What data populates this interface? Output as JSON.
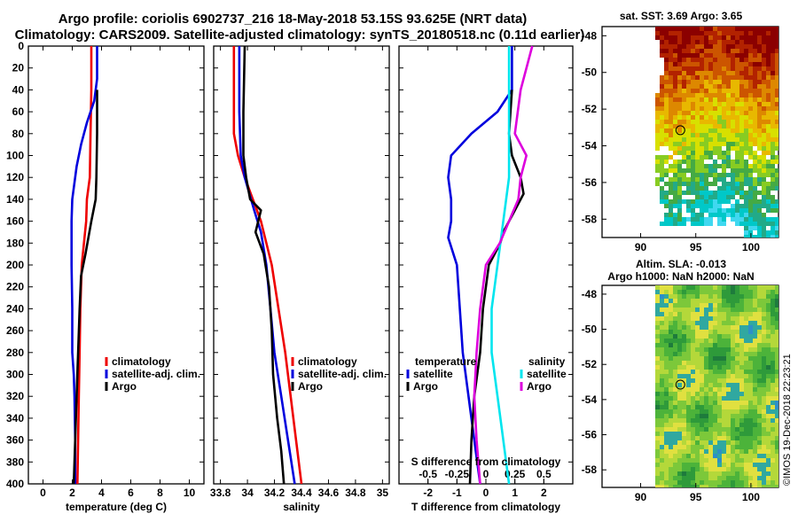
{
  "title_line1": "Argo profile: coriolis 6902737_216 18-May-2018 53.15S 93.625E (NRT data)",
  "title_line2": "Climatology: CARS2009. Satellite-adjusted climatology: synTS_20180518.nc (0.11d earlier)",
  "timestamp": "©IMOS 19-Dec-2018 22:23:21",
  "colors": {
    "climatology": "#ee0000",
    "satellite": "#0000dd",
    "argo": "#000000",
    "sat_salinity": "#00e5ee",
    "argo_salinity": "#dd00dd"
  },
  "chart_data": [
    {
      "type": "line",
      "name": "temperature-profile",
      "xlabel": "temperature (deg C)",
      "ylabel": "",
      "xlim": [
        -1,
        11
      ],
      "ylim": [
        400,
        0
      ],
      "xticks": [
        0,
        2,
        4,
        6,
        8,
        10
      ],
      "xtick_labels": [
        "0",
        "2",
        "4",
        "6",
        "8",
        "10"
      ],
      "yticks": [
        0,
        20,
        40,
        60,
        80,
        100,
        120,
        140,
        160,
        180,
        200,
        220,
        240,
        260,
        280,
        300,
        320,
        340,
        360,
        380,
        400
      ],
      "legend": [
        "climatology",
        "satellite-adj. clim.",
        "Argo"
      ],
      "legend_position": "lower-right",
      "series": [
        {
          "name": "climatology",
          "color": "#ee0000",
          "points": [
            [
              3.3,
              0
            ],
            [
              3.3,
              40
            ],
            [
              3.25,
              80
            ],
            [
              3.2,
              120
            ],
            [
              3.0,
              140
            ],
            [
              2.95,
              160
            ],
            [
              2.8,
              180
            ],
            [
              2.65,
              200
            ],
            [
              2.55,
              240
            ],
            [
              2.5,
              280
            ],
            [
              2.45,
              320
            ],
            [
              2.4,
              360
            ],
            [
              2.35,
              400
            ]
          ]
        },
        {
          "name": "satellite-adj. clim.",
          "color": "#0000dd",
          "points": [
            [
              3.7,
              0
            ],
            [
              3.7,
              30
            ],
            [
              3.5,
              50
            ],
            [
              3.0,
              70
            ],
            [
              2.6,
              90
            ],
            [
              2.3,
              110
            ],
            [
              2.0,
              140
            ],
            [
              1.95,
              160
            ],
            [
              1.95,
              200
            ],
            [
              2.0,
              240
            ],
            [
              2.0,
              280
            ],
            [
              2.1,
              300
            ],
            [
              2.15,
              320
            ],
            [
              2.2,
              360
            ],
            [
              2.2,
              400
            ]
          ]
        },
        {
          "name": "Argo",
          "color": "#000000",
          "points": [
            [
              3.7,
              40
            ],
            [
              3.7,
              80
            ],
            [
              3.65,
              120
            ],
            [
              3.6,
              140
            ],
            [
              3.3,
              160
            ],
            [
              2.9,
              190
            ],
            [
              2.6,
              210
            ],
            [
              2.5,
              240
            ],
            [
              2.4,
              280
            ],
            [
              2.3,
              320
            ],
            [
              2.2,
              360
            ],
            [
              2.1,
              400
            ]
          ]
        }
      ]
    },
    {
      "type": "line",
      "name": "salinity-profile",
      "xlabel": "salinity",
      "ylabel": "",
      "xlim": [
        33.75,
        35.05
      ],
      "ylim": [
        400,
        0
      ],
      "xticks": [
        33.8,
        34,
        34.2,
        34.4,
        34.6,
        34.8,
        35
      ],
      "xtick_labels": [
        "33.8",
        "34",
        "34.2",
        "34.4",
        "34.6",
        "34.8",
        "35"
      ],
      "legend": [
        "climatology",
        "satellite-adj. clim.",
        "Argo"
      ],
      "legend_position": "lower-right",
      "series": [
        {
          "name": "climatology",
          "color": "#ee0000",
          "points": [
            [
              33.9,
              0
            ],
            [
              33.9,
              40
            ],
            [
              33.9,
              80
            ],
            [
              33.93,
              100
            ],
            [
              33.98,
              120
            ],
            [
              34.04,
              140
            ],
            [
              34.1,
              160
            ],
            [
              34.14,
              180
            ],
            [
              34.18,
              200
            ],
            [
              34.23,
              240
            ],
            [
              34.28,
              280
            ],
            [
              34.32,
              320
            ],
            [
              34.36,
              360
            ],
            [
              34.4,
              400
            ]
          ]
        },
        {
          "name": "satellite-adj. clim.",
          "color": "#0000dd",
          "points": [
            [
              33.94,
              0
            ],
            [
              33.94,
              60
            ],
            [
              33.95,
              100
            ],
            [
              33.98,
              120
            ],
            [
              34.05,
              150
            ],
            [
              34.1,
              170
            ],
            [
              34.14,
              200
            ],
            [
              34.17,
              240
            ],
            [
              34.2,
              280
            ],
            [
              34.25,
              320
            ],
            [
              34.3,
              360
            ],
            [
              34.35,
              400
            ]
          ]
        },
        {
          "name": "Argo",
          "color": "#000000",
          "points": [
            [
              33.98,
              0
            ],
            [
              33.97,
              60
            ],
            [
              33.97,
              100
            ],
            [
              33.99,
              120
            ],
            [
              34.02,
              140
            ],
            [
              34.1,
              150
            ],
            [
              34.06,
              170
            ],
            [
              34.12,
              190
            ],
            [
              34.16,
              220
            ],
            [
              34.18,
              260
            ],
            [
              34.19,
              300
            ],
            [
              34.22,
              340
            ],
            [
              34.25,
              370
            ],
            [
              34.27,
              400
            ]
          ]
        }
      ]
    },
    {
      "type": "line",
      "name": "difference-profile",
      "xlabel": "T difference from climatology",
      "xlabel_top": "S difference from climatology",
      "xlim": [
        -3,
        3
      ],
      "ylim": [
        400,
        0
      ],
      "xticks": [
        -2,
        -1,
        0,
        1,
        2
      ],
      "xtick_labels": [
        "-2",
        "-1",
        "0",
        "1",
        "2"
      ],
      "s_xticks": [
        -0.5,
        -0.25,
        0,
        0.25,
        0.5
      ],
      "s_xtick_labels": [
        "-0.5",
        "-0.25",
        "0",
        "0.25",
        "0.5"
      ],
      "s_xlim": [
        -0.75,
        0.75
      ],
      "legend_temperature_title": "temperature",
      "legend_salinity_title": "salinity",
      "legend": [
        "satellite",
        "Argo",
        "satellite",
        "Argo"
      ],
      "legend_position": "lower",
      "series": [
        {
          "name": "temperature satellite",
          "color": "#0000dd",
          "points": [
            [
              0.9,
              0
            ],
            [
              0.9,
              40
            ],
            [
              0.4,
              60
            ],
            [
              -0.5,
              80
            ],
            [
              -1.2,
              100
            ],
            [
              -1.3,
              120
            ],
            [
              -1.2,
              140
            ],
            [
              -1.2,
              160
            ],
            [
              -1.3,
              175
            ],
            [
              -1.0,
              200
            ],
            [
              -0.9,
              240
            ],
            [
              -0.8,
              280
            ],
            [
              -0.6,
              320
            ],
            [
              -0.4,
              360
            ],
            [
              -0.2,
              400
            ]
          ]
        },
        {
          "name": "temperature Argo",
          "color": "#000000",
          "points": [
            [
              0.9,
              40
            ],
            [
              0.8,
              80
            ],
            [
              0.9,
              100
            ],
            [
              1.2,
              120
            ],
            [
              1.3,
              135
            ],
            [
              1.0,
              150
            ],
            [
              0.6,
              170
            ],
            [
              0.5,
              180
            ],
            [
              0.1,
              200
            ],
            [
              -0.1,
              240
            ],
            [
              -0.2,
              280
            ],
            [
              -0.4,
              320
            ],
            [
              -0.5,
              360
            ],
            [
              -0.55,
              400
            ]
          ]
        },
        {
          "name": "salinity satellite",
          "color": "#00e5ee",
          "points": [
            [
              0.2,
              0
            ],
            [
              0.2,
              40
            ],
            [
              0.2,
              80
            ],
            [
              0.2,
              120
            ],
            [
              0.15,
              160
            ],
            [
              0.1,
              200
            ],
            [
              0.05,
              240
            ],
            [
              0.05,
              280
            ],
            [
              0.1,
              320
            ],
            [
              0.15,
              360
            ],
            [
              0.2,
              400
            ]
          ]
        },
        {
          "name": "salinity Argo",
          "color": "#dd00dd",
          "points": [
            [
              0.4,
              0
            ],
            [
              0.3,
              40
            ],
            [
              0.25,
              80
            ],
            [
              0.35,
              100
            ],
            [
              0.3,
              120
            ],
            [
              0.28,
              140
            ],
            [
              0.2,
              160
            ],
            [
              0.12,
              180
            ],
            [
              0.0,
              200
            ],
            [
              -0.05,
              240
            ],
            [
              -0.08,
              280
            ],
            [
              -0.1,
              320
            ],
            [
              -0.08,
              360
            ],
            [
              -0.05,
              400
            ]
          ]
        }
      ]
    },
    {
      "type": "heatmap",
      "name": "sst-map",
      "title": "sat. SST: 3.69 Argo: 3.65",
      "xticks": [
        90,
        95,
        100
      ],
      "xtick_labels": [
        "90",
        "95",
        "100"
      ],
      "yticks": [
        -48,
        -50,
        -52,
        -54,
        -56,
        -58
      ],
      "ytick_labels": [
        "-48",
        "-50",
        "-52",
        "-54",
        "-56",
        "-58"
      ],
      "xlim": [
        86.5,
        102.5
      ],
      "ylim": [
        -59,
        -47.5
      ],
      "marker": [
        93.6,
        -53.15
      ]
    },
    {
      "type": "heatmap",
      "name": "sla-map",
      "title_line1": "Altim. SLA: -0.013",
      "title_line2": "Argo h1000: NaN h2000: NaN",
      "xticks": [
        90,
        95,
        100
      ],
      "xtick_labels": [
        "90",
        "95",
        "100"
      ],
      "yticks": [
        -48,
        -50,
        -52,
        -54,
        -56,
        -58
      ],
      "ytick_labels": [
        "-48",
        "-50",
        "-52",
        "-54",
        "-56",
        "-58"
      ],
      "xlim": [
        86.5,
        102.5
      ],
      "ylim": [
        -59,
        -47.5
      ],
      "marker": [
        93.6,
        -53.15
      ]
    }
  ]
}
